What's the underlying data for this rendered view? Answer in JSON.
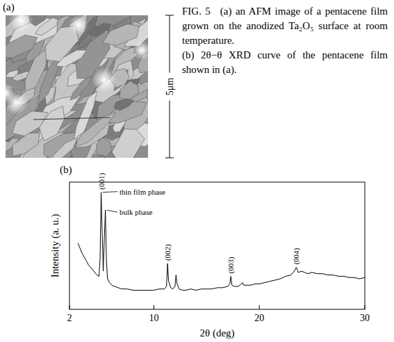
{
  "caption": {
    "label": "FIG. 5",
    "parts": [
      "(a) an AFM image of a pentacene film grown on the anodized Ta₂O₅ surface at room temperature.",
      "(b) 2θ−θ XRD curve of the pentacene film shown in (a)."
    ]
  },
  "panels": [
    {
      "label": "(a)",
      "scale_bar": "5μm"
    },
    {
      "label": "(b)"
    }
  ],
  "chart_data": {
    "type": "line",
    "x_label": "2θ (deg)",
    "y_label": "Intensity (a. u.)",
    "x": [
      2.8,
      3.0,
      3.2,
      3.4,
      3.6,
      3.8,
      4.0,
      4.2,
      4.4,
      4.6,
      4.8,
      4.9,
      5.0,
      5.1,
      5.2,
      5.3,
      5.4,
      5.5,
      5.6,
      5.8,
      6.0,
      6.3,
      6.6,
      7.0,
      7.5,
      8.0,
      8.5,
      9.0,
      9.5,
      10.0,
      10.5,
      11.0,
      11.2,
      11.3,
      11.4,
      11.6,
      11.8,
      12.0,
      12.1,
      12.2,
      12.4,
      12.7,
      13.0,
      13.5,
      14.0,
      14.5,
      15.0,
      15.5,
      16.0,
      16.5,
      17.0,
      17.2,
      17.3,
      17.4,
      17.6,
      18.0,
      18.3,
      18.4,
      18.5,
      18.8,
      19.2,
      19.6,
      20.0,
      20.5,
      21.0,
      21.5,
      22.0,
      22.5,
      23.0,
      23.3,
      23.5,
      23.7,
      24.0,
      24.3,
      24.6,
      25.0,
      25.5,
      26.0,
      26.5,
      27.0,
      27.5,
      28.0,
      28.5,
      29.0,
      29.5,
      30.0
    ],
    "series": [
      {
        "color": "#000000",
        "values": [
          52,
          48,
          44,
          41,
          38,
          35,
          33,
          31,
          29,
          27,
          26,
          40,
          92,
          60,
          30,
          55,
          78,
          40,
          24,
          21,
          19,
          18,
          17,
          16,
          16,
          15,
          15,
          15,
          15,
          15,
          16,
          16,
          18,
          36,
          22,
          17,
          16,
          18,
          27,
          20,
          16,
          15,
          15,
          16,
          15,
          16,
          16,
          16,
          17,
          17,
          18,
          20,
          26,
          19,
          18,
          18,
          20,
          21,
          19,
          19,
          19,
          20,
          20,
          21,
          22,
          23,
          24,
          26,
          27,
          30,
          33,
          29,
          30,
          29,
          28,
          29,
          28,
          28,
          27,
          27,
          26,
          26,
          25,
          25,
          24,
          25
        ]
      }
    ],
    "xlim": [
      2,
      30
    ],
    "ylim": [
      0,
      100
    ],
    "xticks": [
      2,
      10,
      20,
      30
    ],
    "tick_labels": "x",
    "annotations": [
      {
        "text": "(001)",
        "x": 5.0,
        "y": 92
      },
      {
        "text": "thin film phase",
        "x": 5.0,
        "y": 92
      },
      {
        "text": "bulk phase",
        "x": 5.4,
        "y": 78
      },
      {
        "text": "(002)",
        "x": 11.3,
        "y": 36
      },
      {
        "text": "(003)",
        "x": 17.3,
        "y": 26
      },
      {
        "text": "(004)",
        "x": 23.5,
        "y": 33
      }
    ]
  }
}
